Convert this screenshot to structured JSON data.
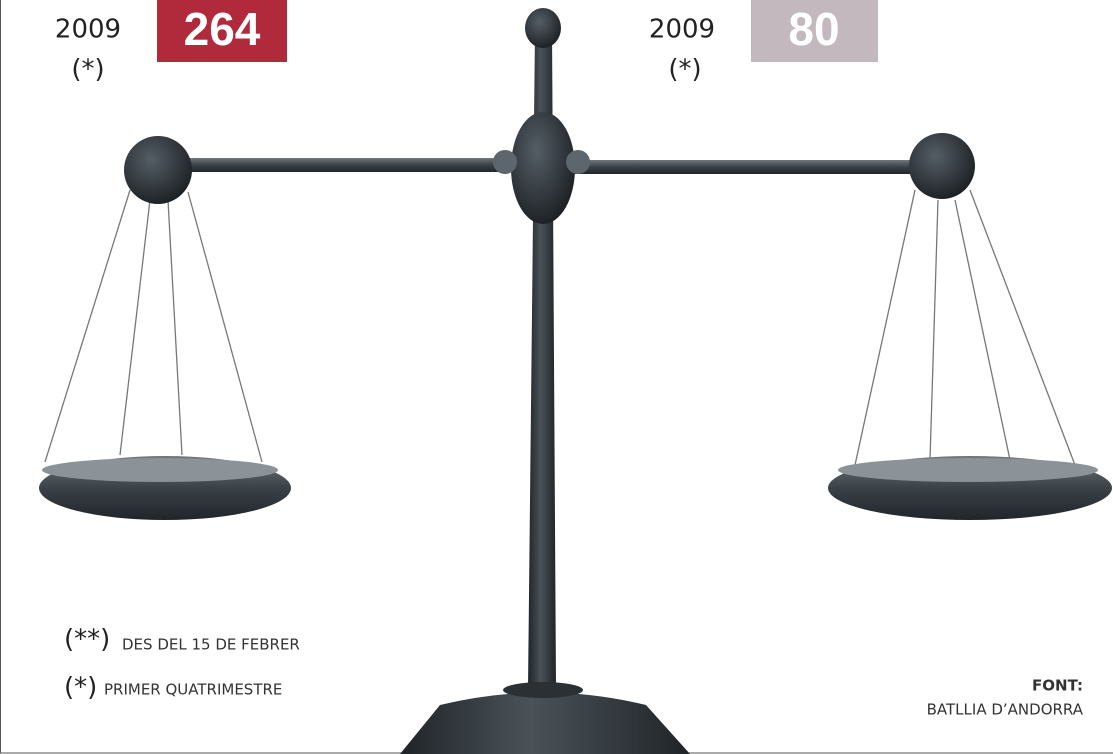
{
  "left": {
    "year": "2009",
    "note": "(*)",
    "value": "264"
  },
  "right": {
    "year": "2009",
    "note": "(*)",
    "value": "80"
  },
  "notes": [
    {
      "mark": "(**)",
      "text": "DES DEL 15 DE FEBRER"
    },
    {
      "mark": "(*)",
      "text": "PRIMER QUATRIMESTRE"
    }
  ],
  "source": {
    "label": "FONT:",
    "text": "BATLLIA D’ANDORRA"
  }
}
